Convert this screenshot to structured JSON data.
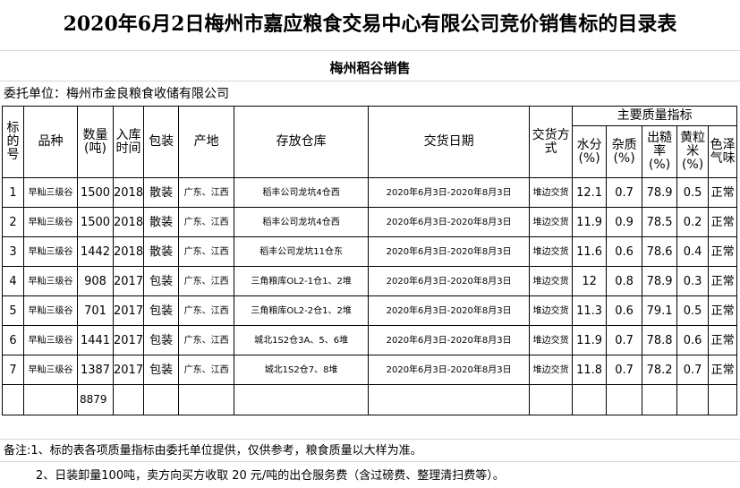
{
  "title": "2020年6月2日梅州市嘉应粮食交易中心有限公司竞价销售标的目录表",
  "subtitle": "梅州稻谷销售",
  "entrust": "委托单位：梅州市金良粮食收储有限公司",
  "headers": {
    "no": "标的号",
    "variety": "品种",
    "qty": "数量(吨)",
    "year": "入库时间",
    "pack": "包装",
    "origin": "产地",
    "warehouse": "存放仓库",
    "date": "交货日期",
    "method": "交货方式",
    "quality": "主要质量指标",
    "moisture": "水分(%)",
    "impurity": "杂质(%)",
    "yield": "出糙率(%)",
    "yellow": "黄粒米(%)",
    "color": "色泽气味"
  },
  "rows": [
    [
      "1",
      "早籼三级谷",
      "1500",
      "2018",
      "散装",
      "广东、江西",
      "稻丰公司龙坑4仓西",
      "2020年6月3日-2020年8月3日",
      "堆边交货",
      "12.1",
      "0.7",
      "78.9",
      "0.5",
      "正常"
    ],
    [
      "2",
      "早籼三级谷",
      "1500",
      "2018",
      "散装",
      "广东、江西",
      "稻丰公司龙坑4仓西",
      "2020年6月3日-2020年8月3日",
      "堆边交货",
      "11.9",
      "0.9",
      "78.5",
      "0.2",
      "正常"
    ],
    [
      "3",
      "早籼三级谷",
      "1442",
      "2018",
      "散装",
      "广东、江西",
      "稻丰公司龙坑11仓东",
      "2020年6月3日-2020年8月3日",
      "堆边交货",
      "11.6",
      "0.6",
      "78.6",
      "0.4",
      "正常"
    ],
    [
      "4",
      "早籼三级谷",
      "908",
      "2017",
      "包装",
      "广东、江西",
      "三角粮库OL2-1仓1、2堆",
      "2020年6月3日-2020年8月3日",
      "堆边交货",
      "12",
      "0.8",
      "78.9",
      "0.3",
      "正常"
    ],
    [
      "5",
      "早籼三级谷",
      "701",
      "2017",
      "包装",
      "广东、江西",
      "三角粮库OL2-2仓1、2堆",
      "2020年6月3日-2020年8月3日",
      "堆边交货",
      "11.3",
      "0.6",
      "79.1",
      "0.5",
      "正常"
    ],
    [
      "6",
      "早籼三级谷",
      "1441",
      "2017",
      "包装",
      "广东、江西",
      "城北1S2仓3A、5、6堆",
      "2020年6月3日-2020年8月3日",
      "堆边交货",
      "11.9",
      "0.7",
      "78.8",
      "0.6",
      "正常"
    ],
    [
      "7",
      "早籼三级谷",
      "1387",
      "2017",
      "包装",
      "广东、江西",
      "城北1S2仓7、8堆",
      "2020年6月3日-2020年8月3日",
      "堆边交货",
      "11.8",
      "0.7",
      "78.2",
      "0.7",
      "正常"
    ]
  ],
  "total": "8879",
  "notes": [
    "备注:1、标的表各项质量指标由委托单位提供，仅供参考，粮食质量以大样为准。",
    "2、日装卸量100吨，卖方向买方收取 20 元/吨的出仓服务费（含过磅费、整理清扫费等）。"
  ]
}
